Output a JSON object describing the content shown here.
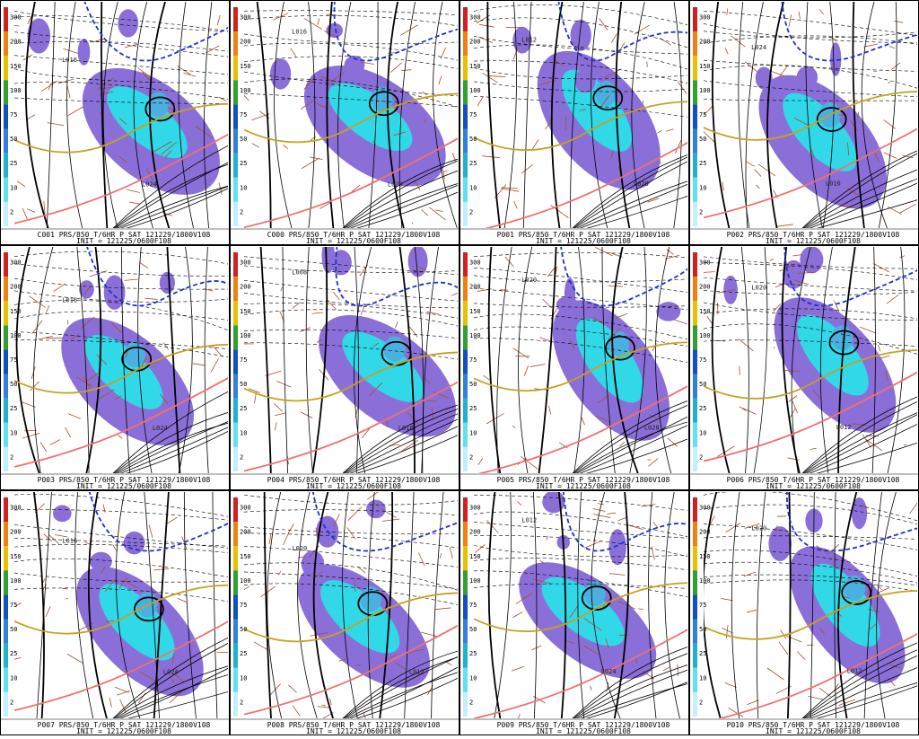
{
  "colorbar": {
    "ticks": [
      "300",
      "200",
      "150",
      "100",
      "75",
      "50",
      "25",
      "10",
      "2"
    ]
  },
  "panels": [
    {
      "title": "C001 PRS/850 T/6HR P SAT 121229/1800V108",
      "init": "INIT = 121225/0600F108",
      "labels": [
        "L016",
        "L024"
      ]
    },
    {
      "title": "C000 PRS/850 T/6HR P SAT 121229/1800V108",
      "init": "INIT = 121225/0600F108",
      "labels": [
        "L016",
        "L028"
      ]
    },
    {
      "title": "P001 PRS/850 T/6HR P SAT 121229/1800V108",
      "init": "INIT = 121225/0600F108",
      "labels": [
        "L012",
        "L020"
      ]
    },
    {
      "title": "P002 PRS/850 T/6HR P SAT 121229/1800V108",
      "init": "INIT = 121225/0600F108",
      "labels": [
        "L024",
        "L016"
      ]
    },
    {
      "title": "P003 PRS/850 T/6HR P SAT 121229/1800V108",
      "init": "INIT = 121225/0600F108",
      "labels": [
        "L016",
        "L024"
      ]
    },
    {
      "title": "P004 PRS/850 T/6HR P SAT 121229/1800V108",
      "init": "INIT = 121225/0600F108",
      "labels": [
        "L008",
        "L016"
      ]
    },
    {
      "title": "P005 PRS/850 T/6HR P SAT 121229/1800V108",
      "init": "INIT = 121225/0600F108",
      "labels": [
        "L020",
        "L028"
      ]
    },
    {
      "title": "P006 PRS/850 T/6HR P SAT 121229/1800V108",
      "init": "INIT = 121225/0600F108",
      "labels": [
        "L020",
        "L012"
      ]
    },
    {
      "title": "P007 PRS/850 T/6HR P SAT 121229/1800V108",
      "init": "INIT = 121225/0600F108",
      "labels": [
        "L016",
        "L024"
      ]
    },
    {
      "title": "P008 PRS/850 T/6HR P SAT 121229/1800V108",
      "init": "INIT = 121225/0600F108",
      "labels": [
        "L020",
        "L012"
      ]
    },
    {
      "title": "P009 PRS/850 T/6HR P SAT 121229/1800V108",
      "init": "INIT = 121225/0600F108",
      "labels": [
        "L012",
        "L024"
      ]
    },
    {
      "title": "P010 PRS/850 T/6HR P SAT 121229/1800V108",
      "init": "INIT = 121225/0600F108",
      "labels": [
        "L020",
        "L012"
      ]
    }
  ]
}
